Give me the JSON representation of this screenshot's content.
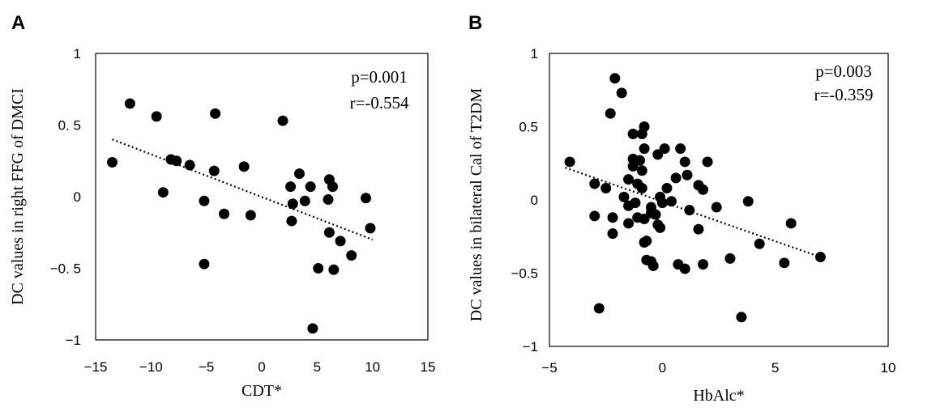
{
  "chart_data": [
    {
      "type": "scatter",
      "panel_label": "A",
      "xlabel": "CDT*",
      "ylabel": "DC values in right FFG of DMCI",
      "xlim": [
        -15,
        15
      ],
      "ylim": [
        -1,
        1
      ],
      "xticks": [
        -15,
        -10,
        -5,
        0,
        5,
        10,
        15
      ],
      "xtick_labels": [
        "−15",
        "−10",
        "−5",
        "0",
        "5",
        "10",
        "15"
      ],
      "yticks": [
        1,
        0.5,
        0,
        -0.5,
        -1
      ],
      "ytick_labels": [
        "1",
        "0. 5",
        "0",
        "−0. 5",
        "−1"
      ],
      "annotations": [
        "p=0.001",
        "r=-0.554"
      ],
      "trendline": {
        "x": [
          -13.5,
          10
        ],
        "y": [
          0.4,
          -0.3
        ]
      },
      "points": [
        {
          "x": -13.5,
          "y": 0.24
        },
        {
          "x": -11.9,
          "y": 0.65
        },
        {
          "x": -9.5,
          "y": 0.56
        },
        {
          "x": -8.9,
          "y": 0.03
        },
        {
          "x": -8.2,
          "y": 0.26
        },
        {
          "x": -7.7,
          "y": 0.25
        },
        {
          "x": -6.5,
          "y": 0.22
        },
        {
          "x": -5.2,
          "y": -0.03
        },
        {
          "x": -5.2,
          "y": -0.47
        },
        {
          "x": -4.3,
          "y": 0.18
        },
        {
          "x": -4.2,
          "y": 0.58
        },
        {
          "x": -3.4,
          "y": -0.12
        },
        {
          "x": -1.6,
          "y": 0.21
        },
        {
          "x": -1.0,
          "y": -0.13
        },
        {
          "x": 1.9,
          "y": 0.53
        },
        {
          "x": 2.6,
          "y": 0.07
        },
        {
          "x": 2.7,
          "y": -0.17
        },
        {
          "x": 2.8,
          "y": -0.05
        },
        {
          "x": 3.4,
          "y": 0.16
        },
        {
          "x": 3.9,
          "y": -0.03
        },
        {
          "x": 4.4,
          "y": 0.07
        },
        {
          "x": 4.6,
          "y": -0.92
        },
        {
          "x": 5.1,
          "y": -0.5
        },
        {
          "x": 6.0,
          "y": -0.02
        },
        {
          "x": 6.1,
          "y": 0.12
        },
        {
          "x": 6.1,
          "y": -0.25
        },
        {
          "x": 6.4,
          "y": 0.07
        },
        {
          "x": 6.5,
          "y": -0.51
        },
        {
          "x": 7.1,
          "y": -0.31
        },
        {
          "x": 8.1,
          "y": -0.41
        },
        {
          "x": 9.4,
          "y": -0.01
        },
        {
          "x": 9.8,
          "y": -0.22
        }
      ]
    },
    {
      "type": "scatter",
      "panel_label": "B",
      "xlabel": "HbAlc*",
      "ylabel": "DC values in bilateral Cal of T2DM",
      "xlim": [
        -5,
        10
      ],
      "ylim": [
        -1,
        1
      ],
      "xticks": [
        -5,
        0,
        5,
        10
      ],
      "xtick_labels": [
        "−5",
        "0",
        "5",
        "10"
      ],
      "yticks": [
        1,
        0.5,
        0,
        -0.5,
        -1
      ],
      "ytick_labels": [
        "1",
        "0.5",
        "0",
        "−0.5",
        "−1"
      ],
      "annotations": [
        "p=0.003",
        "r=-0.359"
      ],
      "trendline": {
        "x": [
          -4.3,
          7.0
        ],
        "y": [
          0.22,
          -0.39
        ]
      },
      "points": [
        {
          "x": -4.1,
          "y": 0.26
        },
        {
          "x": -3.0,
          "y": 0.11
        },
        {
          "x": -3.0,
          "y": -0.11
        },
        {
          "x": -2.8,
          "y": -0.74
        },
        {
          "x": -2.5,
          "y": 0.08
        },
        {
          "x": -2.3,
          "y": 0.59
        },
        {
          "x": -2.2,
          "y": -0.12
        },
        {
          "x": -2.2,
          "y": -0.23
        },
        {
          "x": -2.1,
          "y": 0.83
        },
        {
          "x": -1.8,
          "y": 0.73
        },
        {
          "x": -1.7,
          "y": 0.02
        },
        {
          "x": -1.5,
          "y": 0.14
        },
        {
          "x": -1.5,
          "y": -0.04
        },
        {
          "x": -1.5,
          "y": -0.16
        },
        {
          "x": -1.3,
          "y": 0.45
        },
        {
          "x": -1.3,
          "y": 0.28
        },
        {
          "x": -1.3,
          "y": 0.23
        },
        {
          "x": -1.2,
          "y": -0.02
        },
        {
          "x": -1.1,
          "y": 0.11
        },
        {
          "x": -1.1,
          "y": -0.12
        },
        {
          "x": -1.0,
          "y": 0.27
        },
        {
          "x": -0.9,
          "y": 0.45
        },
        {
          "x": -0.9,
          "y": 0.2
        },
        {
          "x": -0.9,
          "y": 0.08
        },
        {
          "x": -0.8,
          "y": 0.5
        },
        {
          "x": -0.8,
          "y": 0.35
        },
        {
          "x": -0.8,
          "y": -0.13
        },
        {
          "x": -0.8,
          "y": -0.29
        },
        {
          "x": -0.7,
          "y": -0.28
        },
        {
          "x": -0.7,
          "y": -0.41
        },
        {
          "x": -0.5,
          "y": -0.05
        },
        {
          "x": -0.5,
          "y": -0.09
        },
        {
          "x": -0.5,
          "y": -0.42
        },
        {
          "x": -0.4,
          "y": -0.45
        },
        {
          "x": -0.3,
          "y": -0.1
        },
        {
          "x": -0.2,
          "y": 0.31
        },
        {
          "x": -0.2,
          "y": -0.17
        },
        {
          "x": -0.1,
          "y": 0.02
        },
        {
          "x": -0.1,
          "y": -0.19
        },
        {
          "x": 0.0,
          "y": -0.02
        },
        {
          "x": 0.1,
          "y": 0.35
        },
        {
          "x": 0.2,
          "y": 0.08
        },
        {
          "x": 0.4,
          "y": -0.01
        },
        {
          "x": 0.6,
          "y": 0.15
        },
        {
          "x": 0.7,
          "y": -0.44
        },
        {
          "x": 0.8,
          "y": 0.35
        },
        {
          "x": 1.0,
          "y": 0.26
        },
        {
          "x": 1.0,
          "y": -0.47
        },
        {
          "x": 1.1,
          "y": 0.17
        },
        {
          "x": 1.2,
          "y": -0.07
        },
        {
          "x": 1.6,
          "y": 0.1
        },
        {
          "x": 1.6,
          "y": -0.2
        },
        {
          "x": 1.8,
          "y": 0.07
        },
        {
          "x": 1.8,
          "y": -0.44
        },
        {
          "x": 2.0,
          "y": 0.26
        },
        {
          "x": 2.4,
          "y": -0.05
        },
        {
          "x": 3.0,
          "y": -0.4
        },
        {
          "x": 3.8,
          "y": -0.01
        },
        {
          "x": 4.3,
          "y": -0.3
        },
        {
          "x": 3.5,
          "y": -0.8
        },
        {
          "x": 5.4,
          "y": -0.43
        },
        {
          "x": 5.7,
          "y": -0.16
        },
        {
          "x": 7.0,
          "y": -0.39
        }
      ]
    }
  ]
}
